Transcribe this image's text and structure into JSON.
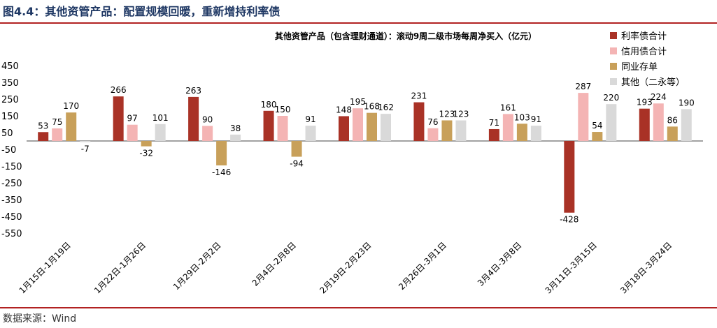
{
  "figure": {
    "title": "图4.4：其他资管产品：配置规模回暖，重新增持利率债",
    "source": "数据来源：Wind"
  },
  "chart_data": {
    "type": "bar",
    "title": "其他资管产品（包含理财通道）：滚动9周二级市场每周净买入（亿元）",
    "categories": [
      "1月15日-1月19日",
      "1月22日-1月26日",
      "1月29日-2月2日",
      "2月4日-2月8日",
      "2月19日-2月23日",
      "2月26日-3月1日",
      "3月4日-3月8日",
      "3月11日-3月15日",
      "3月18日-3月24日"
    ],
    "series": [
      {
        "name": "利率债合计",
        "color": "#a93226",
        "values": [
          53,
          266,
          263,
          180,
          148,
          231,
          71,
          -428,
          193
        ]
      },
      {
        "name": "信用债合计",
        "color": "#f4b4b4",
        "values": [
          75,
          97,
          90,
          150,
          195,
          76,
          161,
          287,
          224
        ]
      },
      {
        "name": "同业存单",
        "color": "#c8a05a",
        "values": [
          170,
          -32,
          -146,
          -94,
          168,
          123,
          103,
          54,
          86
        ]
      },
      {
        "name": "其他（二永等）",
        "color": "#d9d9d9",
        "values": [
          -7,
          101,
          38,
          91,
          162,
          123,
          91,
          220,
          190
        ]
      }
    ],
    "ylim": [
      -550,
      450
    ],
    "yticks": [
      450,
      350,
      250,
      150,
      50,
      -50,
      -150,
      -250,
      -350,
      -450,
      -550
    ],
    "legend_position": "top-right",
    "grid": false,
    "xlabel": "",
    "ylabel": ""
  }
}
